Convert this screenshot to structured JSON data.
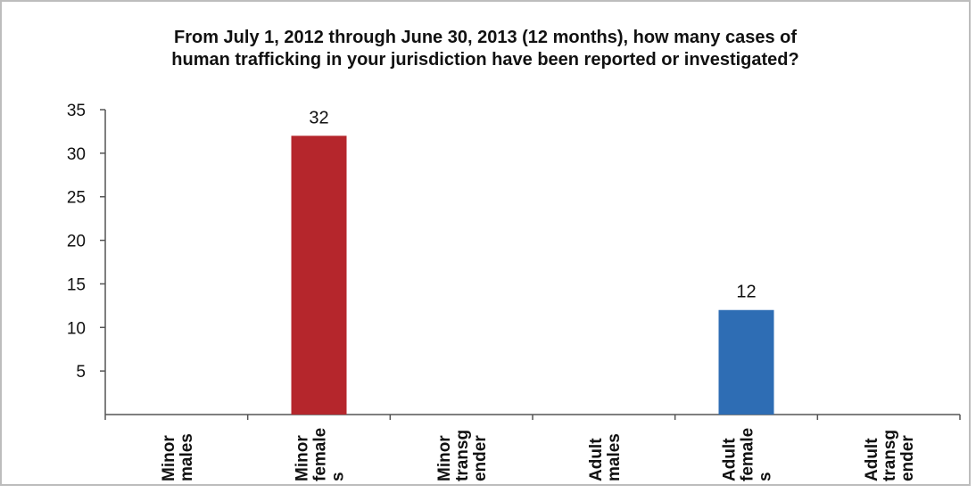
{
  "chart_data": {
    "type": "bar",
    "title": "From  July 1, 2012 through June 30, 2013 (12 months), how many cases of\nhuman trafficking in your jurisdiction have been reported or investigated?",
    "xlabel": "",
    "ylabel": "",
    "ylim": [
      0,
      35
    ],
    "yticks": [
      "35",
      "30",
      "25",
      "20",
      "15",
      "10",
      "5"
    ],
    "grid": false,
    "legend": "none",
    "categories": [
      [
        "Minor",
        "males"
      ],
      [
        "Minor",
        "female",
        "s"
      ],
      [
        "Minor",
        "transg",
        "ender"
      ],
      [
        "Adult",
        "males"
      ],
      [
        "Adult",
        "female",
        "s"
      ],
      [
        "Adult",
        "transg",
        "ender"
      ]
    ],
    "values": [
      0,
      32,
      0,
      0,
      12,
      0
    ],
    "data_labels": [
      "",
      "32",
      "",
      "",
      "12",
      ""
    ],
    "colors": [
      "#b5262c",
      "#b5262c",
      "#b5262c",
      "#b5262c",
      "#2e6db4",
      "#2e6db4"
    ]
  }
}
